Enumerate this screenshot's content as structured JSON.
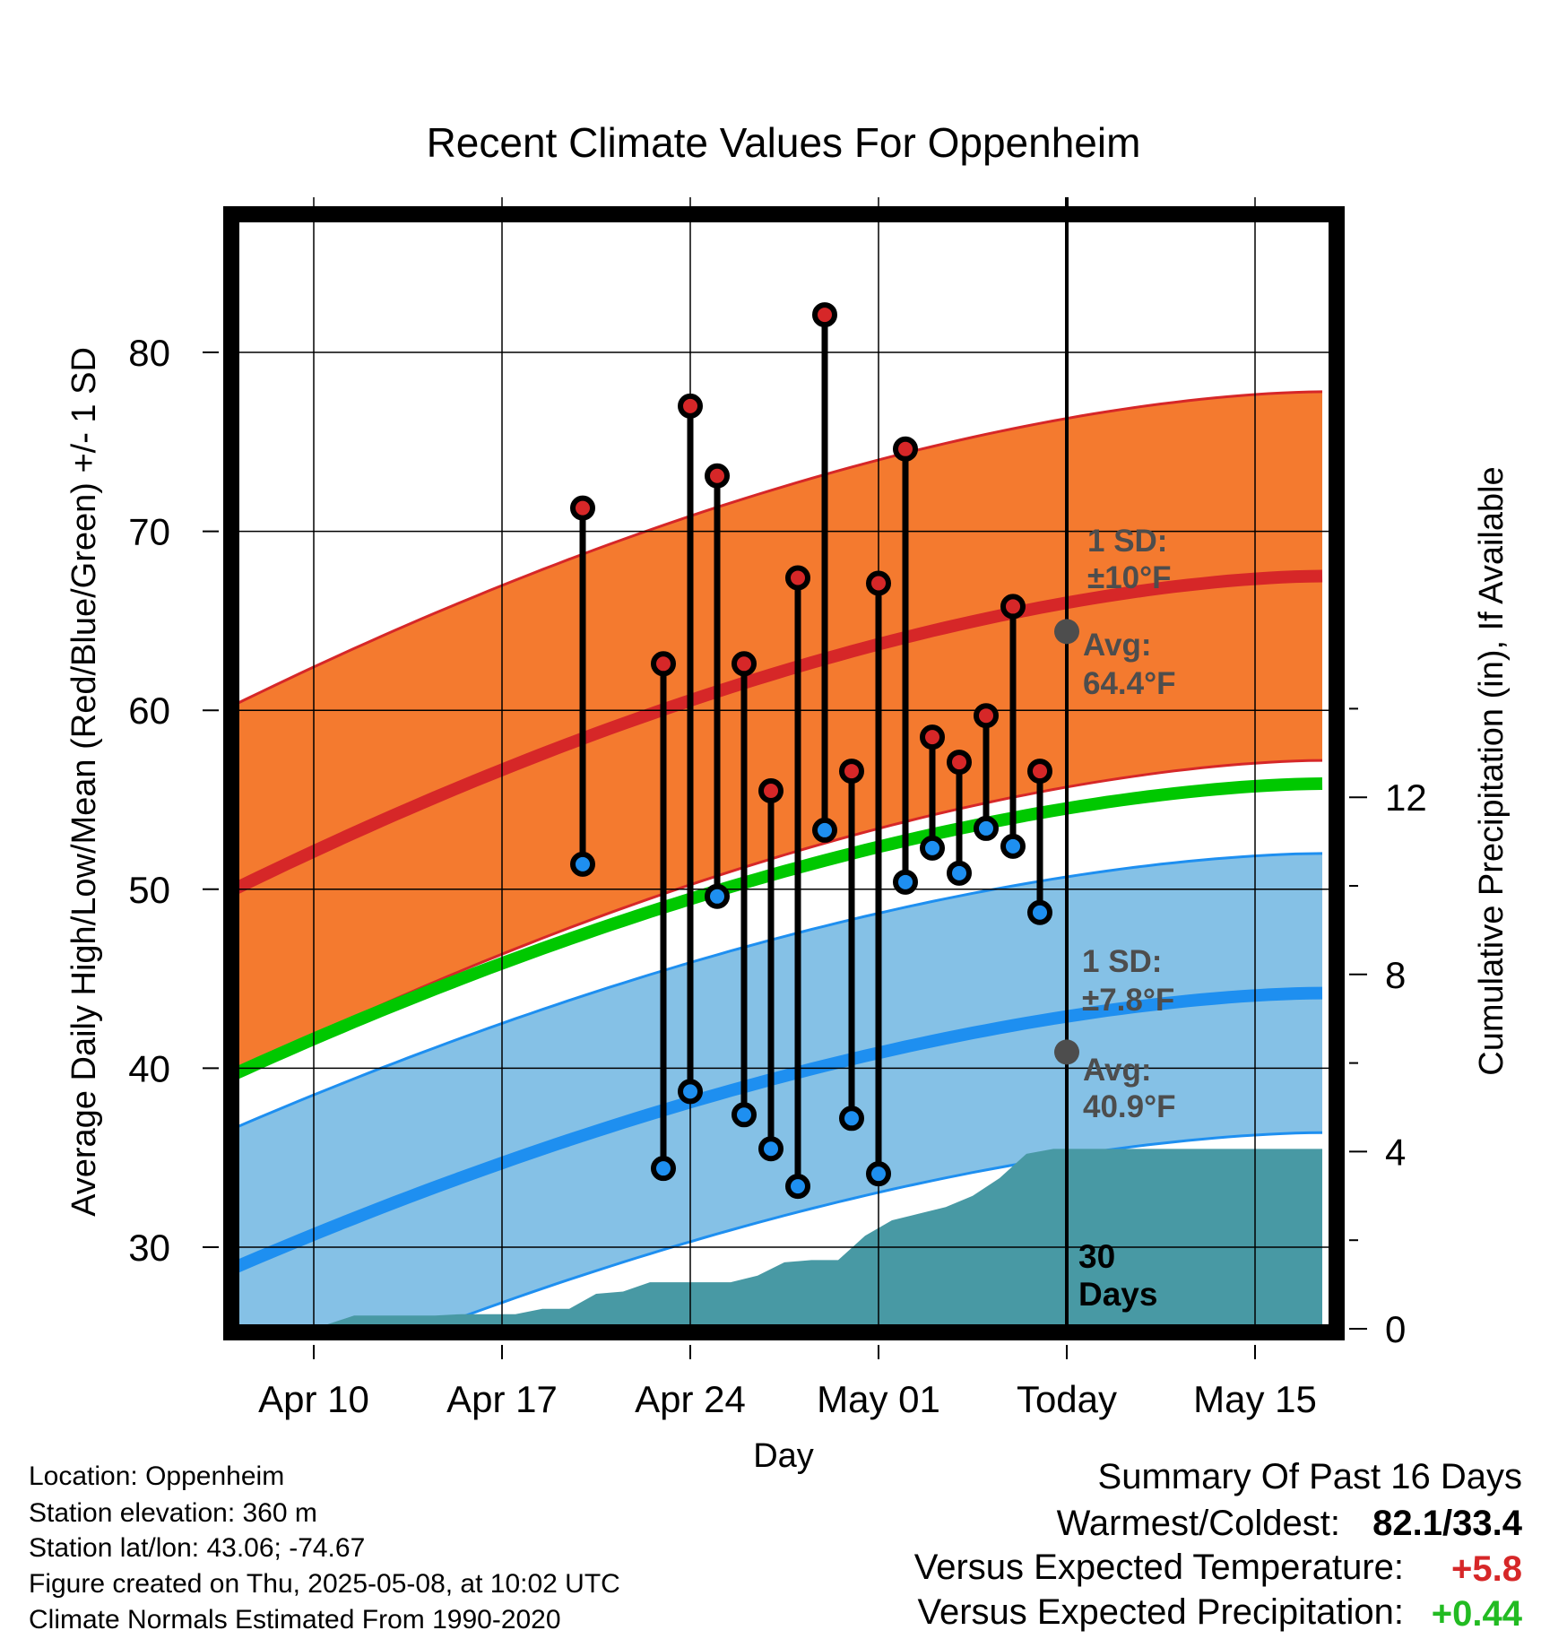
{
  "chart_data": {
    "type": "line",
    "title": "Recent Climate Values For Oppenheim",
    "xlabel": "Day",
    "ylabel": "Average Daily High/Low/Mean (Red/Blue/Green) +/- 1 SD",
    "y2label": "Cumulative Precipitation (in), If Available",
    "x_tick_labels": [
      "Apr 10",
      "Apr 17",
      "Apr 24",
      "May 01",
      "Today",
      "May 15"
    ],
    "x_tick_days": [
      10,
      17,
      24,
      31,
      38,
      45
    ],
    "ylim": [
      25,
      87
    ],
    "y_ticks": [
      30,
      40,
      50,
      60,
      70,
      80
    ],
    "y2lim": [
      0,
      30
    ],
    "y2_ticks": [
      0,
      4,
      8,
      12
    ],
    "xlim_days": [
      6.5,
      47.5
    ],
    "today_day": 38,
    "grid": true,
    "normals": {
      "high_avg_start": 49.6,
      "high_avg_end": 67.5,
      "high_sd": 10.3,
      "low_avg_start": 28.5,
      "low_avg_end": 44.2,
      "low_sd": 7.8,
      "mean_start": 39.3,
      "mean_end": 55.9
    },
    "colors": {
      "high_band": "#f47a2f",
      "high_line": "#d62728",
      "low_band": "#85c1e6",
      "low_line": "#1e8ff0",
      "mean_line": "#00c800",
      "precip": "#4899a4",
      "high_marker": "#d62728",
      "low_marker": "#1e8ff0"
    },
    "series": [
      {
        "name": "High",
        "x": [
          20,
          23,
          24,
          25,
          26,
          27,
          28,
          29,
          30,
          31,
          32,
          33,
          34,
          35,
          36,
          37
        ],
        "values": [
          71.3,
          62.6,
          77.0,
          73.1,
          62.6,
          55.5,
          67.4,
          82.1,
          56.6,
          67.1,
          74.6,
          58.5,
          57.1,
          59.7,
          65.8,
          56.6
        ]
      },
      {
        "name": "Low",
        "x": [
          20,
          23,
          24,
          25,
          26,
          27,
          28,
          29,
          30,
          31,
          32,
          33,
          34,
          35,
          36,
          37
        ],
        "values": [
          51.4,
          34.4,
          38.7,
          49.6,
          37.4,
          35.5,
          33.4,
          53.3,
          37.2,
          34.1,
          50.4,
          52.3,
          50.9,
          53.4,
          52.4,
          48.7
        ]
      }
    ],
    "precip_cumulative": {
      "x": [
        9.5,
        10.5,
        11.5,
        12.5,
        13.5,
        14.5,
        15.5,
        16.5,
        17.5,
        18.5,
        19.5,
        20.5,
        21.5,
        22.5,
        23.5,
        24.5,
        25.5,
        26.5,
        27.5,
        28.5,
        29.5,
        30.5,
        31.5,
        32.5,
        33.5,
        34.5,
        35.5,
        36.5,
        37.5,
        47.5
      ],
      "values": [
        0.0,
        0.1,
        0.3,
        0.3,
        0.3,
        0.3,
        0.33,
        0.33,
        0.33,
        0.45,
        0.45,
        0.79,
        0.84,
        1.05,
        1.05,
        1.05,
        1.05,
        1.2,
        1.5,
        1.55,
        1.55,
        2.1,
        2.45,
        2.6,
        2.75,
        3.0,
        3.4,
        3.95,
        4.06,
        4.06
      ]
    },
    "annotations": {
      "high_sd_label": "1 SD:",
      "high_sd_value": "±10°F",
      "high_avg_label": "Avg:",
      "high_avg_value": "64.4°F",
      "high_avg_num": 64.4,
      "low_sd_label": "1 SD:",
      "low_sd_value": "±7.8°F",
      "low_avg_label": "Avg:",
      "low_avg_value": "40.9°F",
      "low_avg_num": 40.9,
      "days_num": "30",
      "days_word": "Days"
    }
  },
  "footer": {
    "location": "Location: Oppenheim",
    "elevation": "Station elevation: 360 m",
    "latlon": "Station lat/lon: 43.06; -74.67",
    "created": "Figure created on Thu, 2025-05-08, at 10:02 UTC",
    "normals": "Climate Normals Estimated From 1990-2020"
  },
  "summary": {
    "title": "Summary Of Past 16 Days",
    "warmest_label": "Warmest/Coldest:",
    "warmest_value": "82.1/33.4",
    "temp_label": "Versus Expected Temperature:",
    "temp_value": "+5.8",
    "temp_color": "#d62728",
    "precip_label": "Versus Expected Precipitation:",
    "precip_value": "+0.44",
    "precip_color": "#22bb22"
  }
}
